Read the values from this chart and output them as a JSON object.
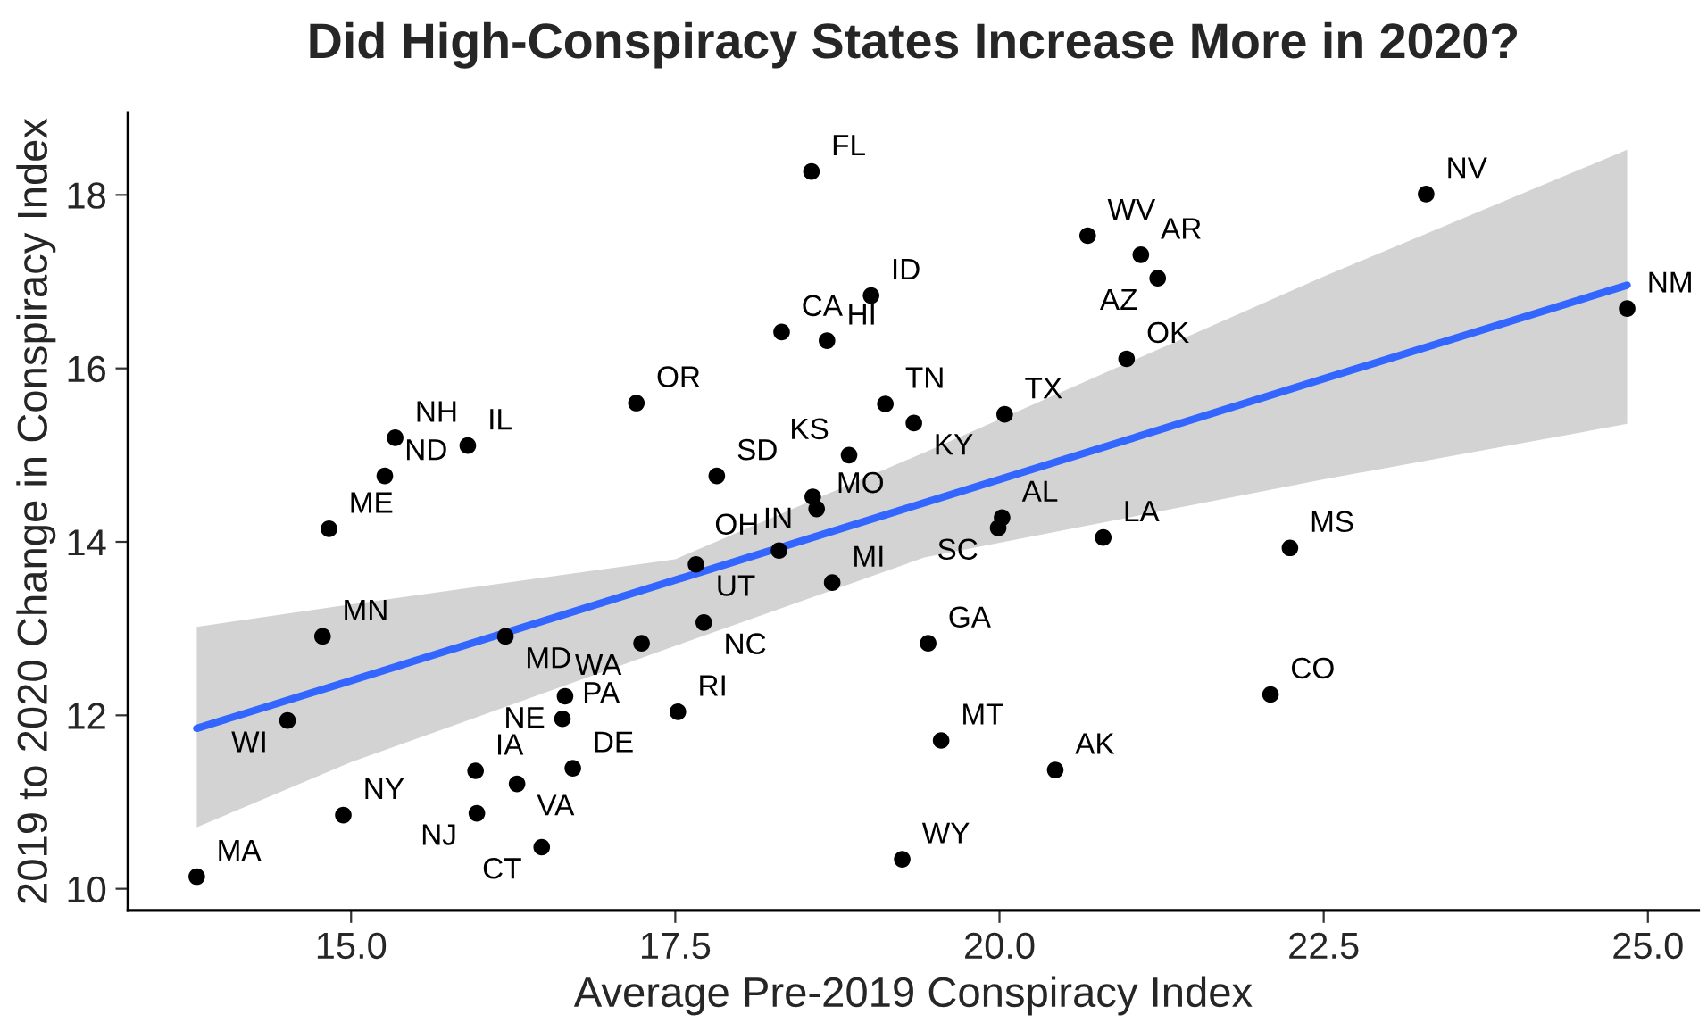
{
  "chart_data": {
    "type": "scatter",
    "title": "Did High-Conspiracy States Increase More in 2020?",
    "xlabel": "Average Pre-2019 Conspiracy Index",
    "ylabel": "2019 to 2020 Change in Conspiracy Index",
    "xlim": [
      13.28,
      25.39
    ],
    "ylim": [
      9.75,
      18.95
    ],
    "xticks": [
      {
        "value": 15,
        "label": "15.0"
      },
      {
        "value": 17.5,
        "label": "17.5"
      },
      {
        "value": 20,
        "label": "20.0"
      },
      {
        "value": 22.5,
        "label": "22.5"
      },
      {
        "value": 25,
        "label": "25.0"
      }
    ],
    "yticks": [
      10,
      12,
      14,
      16,
      18
    ],
    "grid": false,
    "legend": false,
    "series": [
      {
        "color": "#000000",
        "marker": "circle",
        "x": [
          13.81,
          14.94,
          14.51,
          14.78,
          14.83,
          15.26,
          15.34,
          15.9,
          15.96,
          15.97,
          16.19,
          16.28,
          16.47,
          16.63,
          16.65,
          16.71,
          17.2,
          17.24,
          17.52,
          17.66,
          17.72,
          17.82,
          18.3,
          18.32,
          18.56,
          18.59,
          18.55,
          18.67,
          18.71,
          19.01,
          19.12,
          18.84,
          19.34,
          19.45,
          19.25,
          19.55,
          20.04,
          20.02,
          19.99,
          20.68,
          21.09,
          21.22,
          20.98,
          20.8,
          20.43,
          22.09,
          22.24,
          23.29,
          24.84
        ],
        "values": [
          10.14,
          10.85,
          11.94,
          12.91,
          14.15,
          14.76,
          15.2,
          15.11,
          11.36,
          10.87,
          12.91,
          11.21,
          10.48,
          11.96,
          12.22,
          11.39,
          15.6,
          12.83,
          12.04,
          13.74,
          13.07,
          14.76,
          13.9,
          16.42,
          14.52,
          14.38,
          18.27,
          16.32,
          13.53,
          16.84,
          15.59,
          15.0,
          15.37,
          12.83,
          10.34,
          11.71,
          15.47,
          14.28,
          14.16,
          17.53,
          17.31,
          17.04,
          16.11,
          14.05,
          11.37,
          12.24,
          13.93,
          18.01,
          16.69
        ],
        "value_labels": [
          "MA",
          "NY",
          "WI",
          "MN",
          "ME",
          "ND",
          "NH",
          "IL",
          "IA",
          "NJ",
          "MD",
          "VA",
          "CT",
          "PA",
          "NE",
          "DE",
          "OR",
          "WA",
          "RI",
          "UT",
          "NC",
          "SD",
          "OH",
          "CA",
          "IN",
          "MO",
          "FL",
          "HI",
          "MI",
          "ID",
          "TN",
          "KS",
          "KY",
          "GA",
          "WY",
          "MT",
          "TX",
          "AL",
          "SC",
          "WV",
          "AR",
          "AZ",
          "OK",
          "LA",
          "AK",
          "CO",
          "MS",
          "NV",
          "NM"
        ]
      },
      {
        "type": "line",
        "color": "#3366ff",
        "line_style": "solid",
        "x": [
          13.81,
          15,
          17.5,
          19.42,
          22.5,
          24.84
        ],
        "values": [
          11.85,
          12.4,
          13.56,
          14.45,
          15.88,
          16.96
        ],
        "lower": [
          10.71,
          11.46,
          12.8,
          13.82,
          14.72,
          15.36
        ],
        "upper": [
          13.02,
          13.28,
          13.8,
          15.03,
          17.06,
          18.52
        ]
      }
    ]
  }
}
